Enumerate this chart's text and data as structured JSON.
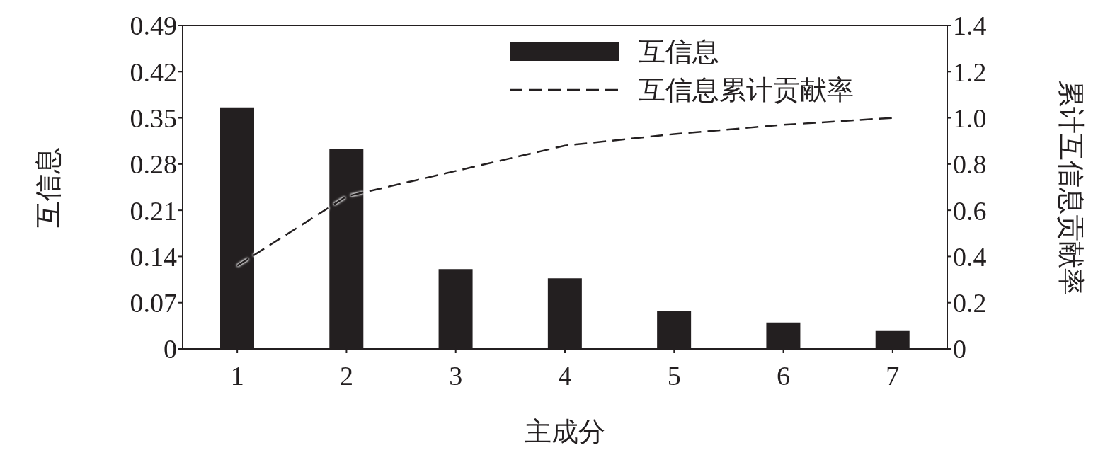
{
  "chart_data": {
    "type": "bar",
    "xlabel": "主成分",
    "ylabel": "互信息",
    "y2label": "累计互信息贡献率",
    "categories": [
      "1",
      "2",
      "3",
      "4",
      "5",
      "6",
      "7"
    ],
    "series": [
      {
        "name": "互信息",
        "color": "#231f20",
        "values": [
          0.366,
          0.303,
          0.121,
          0.107,
          0.057,
          0.04,
          0.027
        ]
      },
      {
        "name": "互信息累计贡献率",
        "type": "line",
        "axis": "y2",
        "color": "#231f20",
        "line_style": "dashed",
        "values": [
          0.36,
          0.66,
          0.77,
          0.88,
          0.93,
          0.97,
          1.0
        ]
      }
    ],
    "ylim": [
      0,
      0.49
    ],
    "yticks": [
      0,
      0.07,
      0.14,
      0.21,
      0.28,
      0.35,
      0.42,
      0.49
    ],
    "y2lim": [
      0,
      1.4
    ],
    "y2ticks": [
      0,
      0.2,
      0.4,
      0.6,
      0.8,
      {
        "value": 1,
        "label": "1.0"
      },
      1.2,
      1.4
    ],
    "legend": "top right",
    "marker": "none"
  }
}
